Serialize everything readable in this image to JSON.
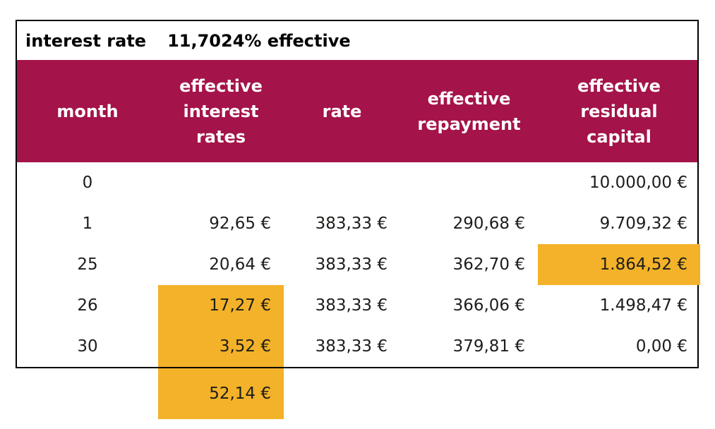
{
  "title": {
    "label": "interest rate",
    "value": "11,7024% effective"
  },
  "colors": {
    "header_bg": "#a41349",
    "highlight": "#f3b229",
    "border": "#000000"
  },
  "table": {
    "columns": [
      {
        "key": "month",
        "label": "month"
      },
      {
        "key": "interest",
        "label": "effective\ninterest\nrates"
      },
      {
        "key": "rate",
        "label": "rate"
      },
      {
        "key": "repayment",
        "label": "effective\nrepayment"
      },
      {
        "key": "residual",
        "label": "effective\nresidual\ncapital"
      }
    ],
    "rows": [
      {
        "month": "0",
        "interest": "",
        "rate": "",
        "repayment": "",
        "residual": "10.000,00 €"
      },
      {
        "month": "1",
        "interest": "92,65 €",
        "rate": "383,33 €",
        "repayment": "290,68 €",
        "residual": "9.709,32 €"
      },
      {
        "month": "25",
        "interest": "20,64 €",
        "rate": "383,33 €",
        "repayment": "362,70 €",
        "residual": "1.864,52 €",
        "highlighted": "residual"
      },
      {
        "month": "26",
        "interest": "17,27 €",
        "rate": "383,33 €",
        "repayment": "366,06 €",
        "residual": "1.498,47 €",
        "highlighted": "interest"
      },
      {
        "month": "30",
        "interest": "3,52 €",
        "rate": "383,33 €",
        "repayment": "379,81 €",
        "residual": "0,00 €",
        "highlighted": "interest"
      }
    ],
    "total": {
      "interest_sum": "52,14 €"
    }
  }
}
